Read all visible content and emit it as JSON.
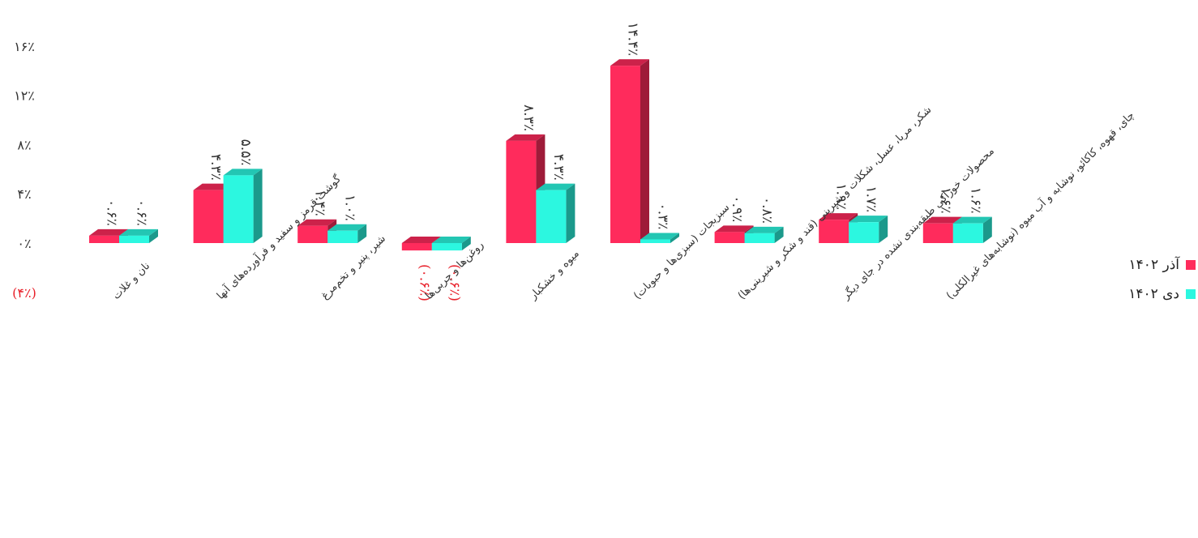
{
  "chart_data": {
    "type": "bar",
    "title": "",
    "xlabel": "",
    "ylabel": "",
    "ylim": [
      -4,
      16
    ],
    "y_ticks": [
      -4,
      0,
      4,
      8,
      12,
      16
    ],
    "y_tick_labels": [
      "(۴٪)",
      "۰٪",
      "۴٪",
      "۸٪",
      "۱۲٪",
      "۱۶٪"
    ],
    "categories": [
      "نان و غلات",
      "گوشت قرمز و سفید و فرآورده‌های آنها",
      "شیر، پنیر و تخم‌مرغ",
      "روغن‌ها و چربی‌ها",
      "میوه و خشکبار",
      "سبزیجات (سبزی‌ها و حبوبات)",
      "شکر، مربا، عسل، شکلات و شیرینی (قند و شکر و شیرینی‌ها)",
      "محصولات خوراکی طبقه‌بندی نشده در جای دیگر",
      "چای، قهوه، کاکائو، نوشابه و آب میوه (نوشابه‌های غیرالکلی)"
    ],
    "series": [
      {
        "name": "آذر ۱۴۰۲",
        "color": "#FF2B5C",
        "values": [
          0.6,
          4.3,
          1.4,
          -0.6,
          8.3,
          14.4,
          0.9,
          1.9,
          1.6
        ],
        "labels": [
          "۰.۶٪",
          "۴.۳٪",
          "۱.۴٪",
          "(۰.۶٪)",
          "۸.۳٪",
          "۱۴.۴٪",
          "۰.۹٪",
          "۱.۹٪",
          "۱.۶٪"
        ]
      },
      {
        "name": "دی ۱۴۰۲",
        "color": "#2CF7E0",
        "values": [
          0.6,
          5.5,
          1.0,
          -0.6,
          4.3,
          0.3,
          0.8,
          1.7,
          1.6
        ],
        "labels": [
          "۰.۶٪",
          "۵.۵٪",
          "۱.۰٪",
          "(۰.۶٪)",
          "۴.۳٪",
          "۰.۳٪",
          "۰.۸٪",
          "۱.۷٪",
          "۱.۶٪"
        ]
      }
    ],
    "negative_label_color": "#E8202A",
    "legend_position": "right",
    "grid": false
  },
  "legend": {
    "items": [
      {
        "label": "آذر ۱۴۰۲",
        "color": "#FF2B5C"
      },
      {
        "label": "دی ۱۴۰۲",
        "color": "#2CF7E0"
      }
    ]
  }
}
